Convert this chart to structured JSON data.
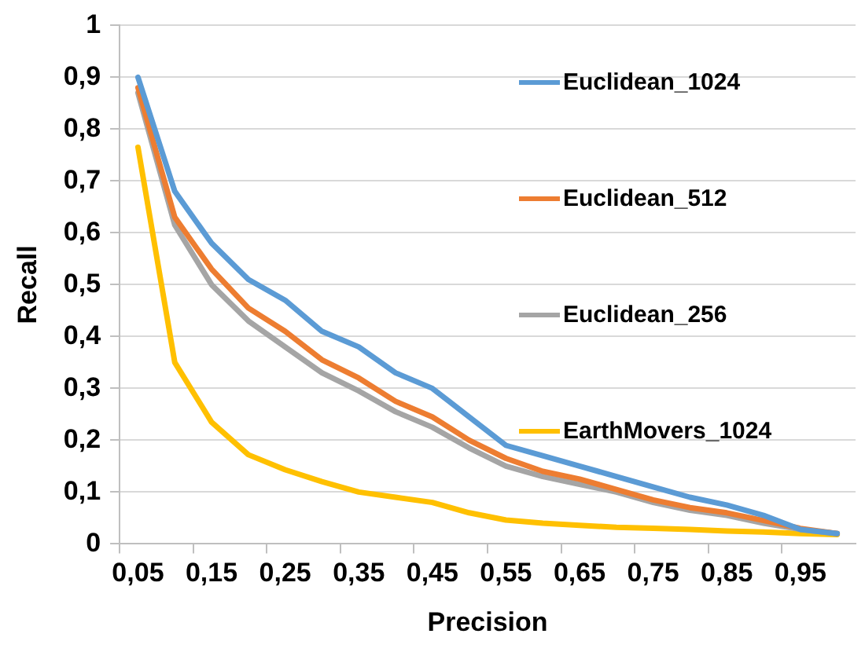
{
  "chart_data": {
    "type": "line",
    "xlabel": "Precision",
    "ylabel": "Recall",
    "categories": [
      "0,05",
      null,
      "0,15",
      null,
      "0,25",
      null,
      "0,35",
      null,
      "0,45",
      null,
      "0,55",
      null,
      "0,65",
      null,
      "0,75",
      null,
      "0,85",
      null,
      "0,95",
      null
    ],
    "series": [
      {
        "name": "Euclidean_1024",
        "color": "#5b9bd5",
        "values": [
          0.9,
          0.68,
          0.58,
          0.51,
          0.47,
          0.41,
          0.38,
          0.33,
          0.3,
          0.245,
          0.19,
          0.17,
          0.15,
          0.13,
          0.11,
          0.09,
          0.075,
          0.055,
          0.028,
          0.02
        ]
      },
      {
        "name": "Euclidean_512",
        "color": "#ed7d31",
        "values": [
          0.88,
          0.63,
          0.53,
          0.455,
          0.41,
          0.355,
          0.32,
          0.275,
          0.245,
          0.2,
          0.165,
          0.14,
          0.125,
          0.105,
          0.085,
          0.07,
          0.06,
          0.045,
          0.03,
          0.02
        ]
      },
      {
        "name": "Euclidean_256",
        "color": "#a5a5a5",
        "values": [
          0.87,
          0.615,
          0.5,
          0.43,
          0.38,
          0.33,
          0.295,
          0.255,
          0.225,
          0.185,
          0.15,
          0.13,
          0.115,
          0.1,
          0.08,
          0.065,
          0.055,
          0.04,
          0.028,
          0.02
        ]
      },
      {
        "name": "EarthMovers_1024",
        "color": "#ffc000",
        "values": [
          0.765,
          0.35,
          0.235,
          0.172,
          0.143,
          0.12,
          0.1,
          0.09,
          0.08,
          0.06,
          0.046,
          0.04,
          0.036,
          0.032,
          0.03,
          0.028,
          0.025,
          0.023,
          0.02,
          0.018
        ]
      }
    ],
    "ylim": [
      0,
      1
    ],
    "yticks": [
      0,
      {
        "value": 0.1,
        "label": "0,1"
      },
      {
        "value": 0.2,
        "label": "0,2"
      },
      {
        "value": 0.3,
        "label": "0,3"
      },
      {
        "value": 0.4,
        "label": "0,4"
      },
      {
        "value": 0.5,
        "label": "0,5"
      },
      {
        "value": 0.6,
        "label": "0,6"
      },
      {
        "value": 0.7,
        "label": "0,7"
      },
      {
        "value": 0.8,
        "label": "0,8"
      },
      {
        "value": 0.9,
        "label": "0,9"
      },
      1
    ],
    "grid": "y",
    "legend": "top right",
    "marker": "none",
    "line_style": "solid"
  }
}
